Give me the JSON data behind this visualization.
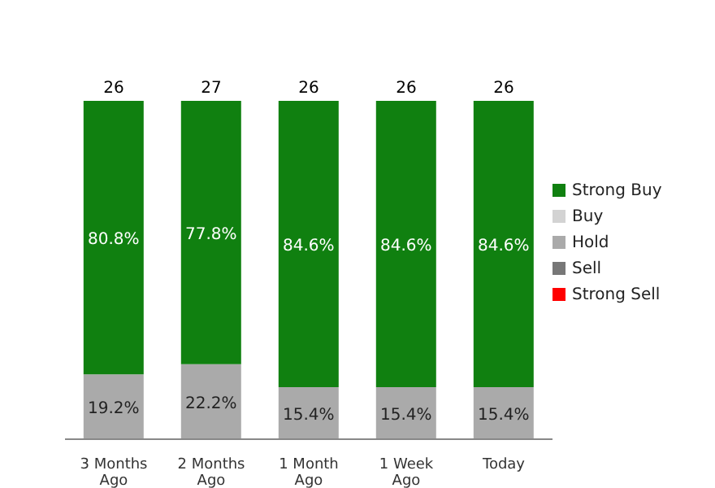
{
  "chart_data": {
    "type": "bar",
    "stacked": true,
    "categories": [
      "3 Months Ago",
      "2 Months Ago",
      "1 Month Ago",
      "1 Week Ago",
      "Today"
    ],
    "series": [
      {
        "name": "Strong Sell",
        "color": "#ff0000",
        "values": [
          null,
          null,
          null,
          null,
          null
        ]
      },
      {
        "name": "Sell",
        "color": "#777777",
        "values": [
          null,
          null,
          null,
          null,
          null
        ]
      },
      {
        "name": "Hold",
        "color": "#aaaaaa",
        "values": [
          19.2,
          22.2,
          15.4,
          15.4,
          15.4
        ],
        "value_labels": [
          "19.2%",
          "22.2%",
          "15.4%",
          "15.4%",
          "15.4%"
        ]
      },
      {
        "name": "Buy",
        "color": "#d3d3d3",
        "values": [
          null,
          null,
          null,
          null,
          null
        ]
      },
      {
        "name": "Strong Buy",
        "color": "#108010",
        "values": [
          80.8,
          77.8,
          84.6,
          84.6,
          84.6
        ],
        "value_labels": [
          "80.8%",
          "77.8%",
          "84.6%",
          "84.6%",
          "84.6%"
        ]
      }
    ],
    "annotations": [
      {
        "text": "26",
        "x": "3 Months Ago",
        "y": 100
      },
      {
        "text": "27",
        "x": "2 Months Ago",
        "y": 100
      },
      {
        "text": "26",
        "x": "1 Month Ago",
        "y": 100
      },
      {
        "text": "26",
        "x": "1 Week Ago",
        "y": 100
      },
      {
        "text": "26",
        "x": "Today",
        "y": 100
      }
    ],
    "legend": "right",
    "grid": false
  }
}
